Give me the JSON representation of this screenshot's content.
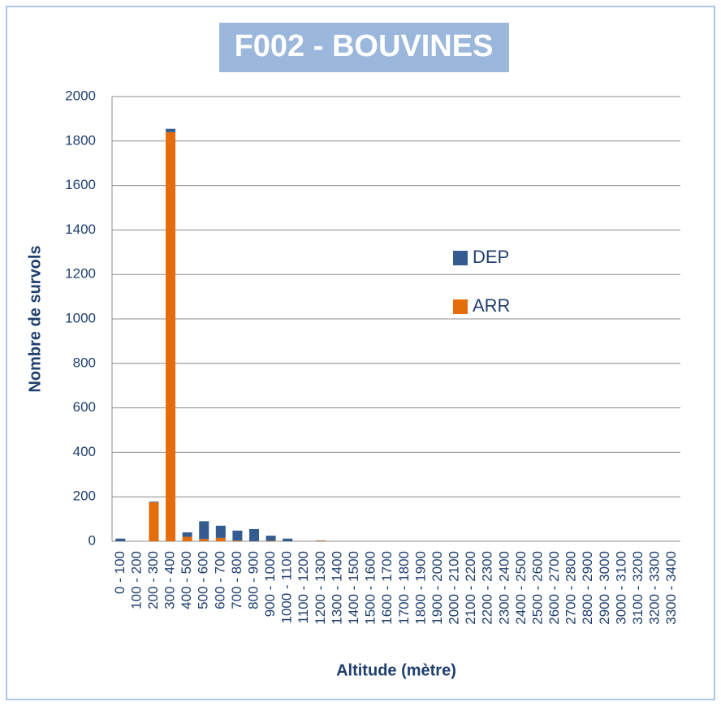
{
  "chart_data": {
    "type": "stacked_bar",
    "title": "F002 - BOUVINES",
    "xlabel": "Altitude (mètre)",
    "ylabel": "Nombre de survols",
    "categories": [
      "0 - 100",
      "100 - 200",
      "200 - 300",
      "300 - 400",
      "400 - 500",
      "500 - 600",
      "600 - 700",
      "700 - 800",
      "800 - 900",
      "900 - 1000",
      "1000 - 1100",
      "1100 - 1200",
      "1200 - 1300",
      "1300 - 1400",
      "1400 - 1500",
      "1500 - 1600",
      "1600 - 1700",
      "1700 - 1800",
      "1800 - 1900",
      "1900 - 2000",
      "2000 - 2100",
      "2100 - 2200",
      "2200 - 2300",
      "2300 - 2400",
      "2400 - 2500",
      "2500 - 2600",
      "2600 - 2700",
      "2700 - 2800",
      "2800 - 2900",
      "2900 - 3000",
      "3000 - 3100",
      "3100 - 3200",
      "3200 - 3300",
      "3300 - 3400"
    ],
    "series": [
      {
        "name": "DEP",
        "color": "#345c91",
        "values": [
          12,
          0,
          3,
          15,
          20,
          80,
          55,
          45,
          55,
          23,
          12,
          0,
          1,
          0,
          0,
          0,
          0,
          0,
          0,
          0,
          0,
          0,
          0,
          0,
          0,
          0,
          0,
          0,
          0,
          0,
          0,
          0,
          0,
          0
        ]
      },
      {
        "name": "ARR",
        "color": "#e46c0a",
        "values": [
          0,
          0,
          175,
          1840,
          20,
          10,
          15,
          3,
          0,
          2,
          0,
          0,
          3,
          0,
          0,
          0,
          0,
          0,
          0,
          0,
          0,
          0,
          0,
          0,
          0,
          0,
          0,
          0,
          0,
          0,
          0,
          0,
          0,
          0
        ]
      }
    ],
    "ylim": [
      0,
      2000
    ],
    "yticks": [
      0,
      200,
      400,
      600,
      800,
      1000,
      1200,
      1400,
      1600,
      1800,
      2000
    ],
    "grid": true
  }
}
